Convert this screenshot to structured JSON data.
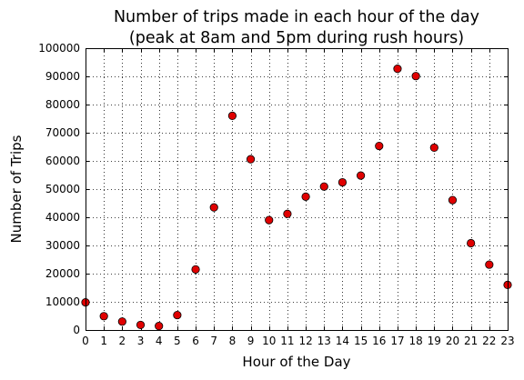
{
  "chart_data": {
    "type": "scatter",
    "title": "Number of trips made in each hour of the day",
    "subtitle": "(peak at 8am and 5pm during rush hours)",
    "xlabel": "Hour of the Day",
    "ylabel": "Number of Trips",
    "xlim": [
      0,
      23
    ],
    "ylim": [
      0,
      100000
    ],
    "grid": true,
    "x_ticks": [
      "0",
      "1",
      "2",
      "3",
      "4",
      "5",
      "6",
      "7",
      "8",
      "9",
      "10",
      "11",
      "12",
      "13",
      "14",
      "15",
      "16",
      "17",
      "18",
      "19",
      "20",
      "21",
      "22",
      "23"
    ],
    "y_ticks": [
      "0",
      "10000",
      "20000",
      "30000",
      "40000",
      "50000",
      "60000",
      "70000",
      "80000",
      "90000",
      "100000"
    ],
    "series": [
      {
        "marker_color": "#e00000",
        "points": [
          {
            "x": 0,
            "y": 9800
          },
          {
            "x": 1,
            "y": 4900
          },
          {
            "x": 2,
            "y": 3000
          },
          {
            "x": 3,
            "y": 1800
          },
          {
            "x": 4,
            "y": 1400
          },
          {
            "x": 5,
            "y": 5300
          },
          {
            "x": 6,
            "y": 21500
          },
          {
            "x": 7,
            "y": 43500
          },
          {
            "x": 8,
            "y": 76000
          },
          {
            "x": 9,
            "y": 60600
          },
          {
            "x": 10,
            "y": 39000
          },
          {
            "x": 11,
            "y": 41200
          },
          {
            "x": 12,
            "y": 47300
          },
          {
            "x": 13,
            "y": 50900
          },
          {
            "x": 14,
            "y": 52400
          },
          {
            "x": 15,
            "y": 54800
          },
          {
            "x": 16,
            "y": 65300
          },
          {
            "x": 17,
            "y": 92700
          },
          {
            "x": 18,
            "y": 90100
          },
          {
            "x": 19,
            "y": 64700
          },
          {
            "x": 20,
            "y": 46100
          },
          {
            "x": 21,
            "y": 30800
          },
          {
            "x": 22,
            "y": 23200
          },
          {
            "x": 23,
            "y": 16000
          }
        ]
      }
    ]
  }
}
